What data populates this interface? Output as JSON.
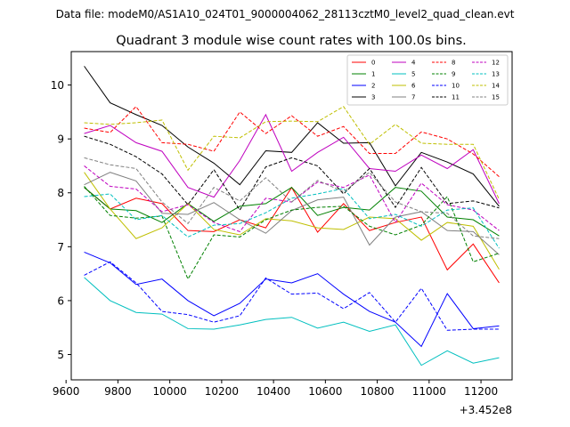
{
  "chart_data": {
    "type": "line",
    "suptitle": "Data file: modeM0/AS1A10_024T01_9000004062_28113cztM0_level2_quad_clean.evt",
    "title": "Quadrant 3 module wise count rates with 100.0s bins.",
    "xlabel": "",
    "ylabel": "",
    "x_offset_label": "+3.452e8",
    "xlim": [
      9620,
      11320
    ],
    "ylim": [
      4.53,
      10.62
    ],
    "x_ticks": [
      9600,
      9800,
      10000,
      10200,
      10400,
      10600,
      10800,
      11000,
      11200
    ],
    "x_tick_labels": [
      "9600",
      "9800",
      "10000",
      "10200",
      "10400",
      "10600",
      "10800",
      "11000",
      "11200"
    ],
    "y_ticks": [
      5,
      6,
      7,
      8,
      9,
      10
    ],
    "y_tick_labels": [
      "5",
      "6",
      "7",
      "8",
      "9",
      "10"
    ],
    "grid": false,
    "legend_position": "top-right",
    "x": [
      9670,
      9770,
      9870,
      9970,
      10070,
      10170,
      10270,
      10370,
      10470,
      10570,
      10670,
      10770,
      10870,
      10970,
      11070,
      11170,
      11270
    ],
    "series": [
      {
        "name": "0",
        "color": "#ff0000",
        "dash": false,
        "values": [
          8.1,
          7.7,
          7.9,
          7.8,
          7.3,
          7.28,
          7.5,
          7.35,
          8.1,
          7.27,
          7.8,
          7.3,
          7.45,
          7.55,
          6.57,
          7.05,
          6.33
        ]
      },
      {
        "name": "1",
        "color": "#008000",
        "dash": false,
        "values": [
          8.1,
          7.7,
          7.67,
          7.45,
          7.8,
          7.47,
          7.75,
          7.8,
          8.1,
          7.58,
          7.73,
          7.68,
          8.1,
          8.03,
          7.55,
          7.5,
          7.2
        ]
      },
      {
        "name": "2",
        "color": "#0000ff",
        "dash": false,
        "values": [
          6.9,
          6.7,
          6.3,
          6.4,
          6.0,
          5.72,
          5.95,
          6.4,
          6.33,
          6.5,
          6.12,
          5.8,
          5.6,
          5.15,
          6.13,
          5.48,
          5.53
        ]
      },
      {
        "name": "3",
        "color": "#000000",
        "dash": false,
        "values": [
          10.35,
          9.67,
          9.45,
          9.25,
          8.85,
          8.55,
          8.15,
          8.78,
          8.75,
          9.3,
          8.92,
          8.93,
          8.13,
          8.75,
          8.57,
          8.35,
          7.75
        ]
      },
      {
        "name": "4",
        "color": "#bf00bf",
        "dash": false,
        "values": [
          9.1,
          9.25,
          8.93,
          8.77,
          8.1,
          7.92,
          8.6,
          9.45,
          8.4,
          8.75,
          9.03,
          8.45,
          8.4,
          8.7,
          8.45,
          8.8,
          7.8
        ]
      },
      {
        "name": "5",
        "color": "#00bfbf",
        "dash": false,
        "values": [
          6.43,
          6.0,
          5.78,
          5.75,
          5.48,
          5.47,
          5.55,
          5.65,
          5.69,
          5.49,
          5.6,
          5.43,
          5.55,
          4.8,
          5.07,
          4.84,
          4.94
        ]
      },
      {
        "name": "6",
        "color": "#bfbf00",
        "dash": false,
        "values": [
          8.38,
          7.7,
          7.15,
          7.35,
          7.8,
          7.32,
          7.22,
          7.52,
          7.48,
          7.35,
          7.32,
          7.55,
          7.52,
          7.12,
          7.45,
          7.38,
          6.58
        ]
      },
      {
        "name": "7",
        "color": "#808080",
        "dash": false,
        "values": [
          8.15,
          8.38,
          8.22,
          7.62,
          7.6,
          7.82,
          7.5,
          7.25,
          7.67,
          7.87,
          7.92,
          7.03,
          7.55,
          7.65,
          7.3,
          7.28,
          6.85
        ]
      },
      {
        "name": "8",
        "color": "#ff0000",
        "dash": true,
        "values": [
          9.2,
          9.12,
          9.6,
          8.93,
          8.9,
          8.77,
          9.5,
          9.1,
          9.43,
          9.05,
          9.23,
          8.73,
          8.73,
          9.13,
          9.0,
          8.72,
          8.3
        ]
      },
      {
        "name": "9",
        "color": "#008000",
        "dash": true,
        "values": [
          8.12,
          7.58,
          7.53,
          7.57,
          6.4,
          7.22,
          7.18,
          7.5,
          7.68,
          7.73,
          7.75,
          7.38,
          7.22,
          7.4,
          7.93,
          6.72,
          6.88
        ]
      },
      {
        "name": "10",
        "color": "#0000ff",
        "dash": true,
        "values": [
          6.47,
          6.72,
          6.33,
          5.8,
          5.74,
          5.6,
          5.72,
          6.42,
          6.12,
          6.14,
          5.85,
          6.15,
          5.6,
          6.23,
          5.45,
          5.47,
          5.47
        ]
      },
      {
        "name": "11",
        "color": "#000000",
        "dash": true,
        "values": [
          9.05,
          8.9,
          8.67,
          8.35,
          7.78,
          8.43,
          7.68,
          8.48,
          8.65,
          8.5,
          7.98,
          8.45,
          7.73,
          8.47,
          7.8,
          7.85,
          7.72
        ]
      },
      {
        "name": "12",
        "color": "#bf00bf",
        "dash": true,
        "values": [
          8.5,
          8.12,
          8.07,
          7.65,
          7.78,
          7.45,
          7.28,
          7.9,
          7.83,
          8.2,
          8.1,
          8.33,
          7.45,
          8.18,
          7.78,
          7.68,
          7.3
        ]
      },
      {
        "name": "13",
        "color": "#00bfbf",
        "dash": true,
        "values": [
          7.93,
          7.98,
          7.5,
          7.58,
          7.18,
          7.4,
          7.43,
          7.63,
          7.9,
          7.98,
          8.08,
          7.52,
          7.6,
          7.38,
          7.68,
          7.72,
          6.97
        ]
      },
      {
        "name": "14",
        "color": "#bfbf00",
        "dash": true,
        "values": [
          9.3,
          9.27,
          9.3,
          9.35,
          8.42,
          9.05,
          9.02,
          9.32,
          9.33,
          9.32,
          9.6,
          8.9,
          9.27,
          8.92,
          8.9,
          8.9,
          7.88
        ]
      },
      {
        "name": "15",
        "color": "#808080",
        "dash": true,
        "values": [
          8.65,
          8.52,
          8.45,
          7.83,
          7.43,
          8.1,
          7.85,
          8.28,
          7.83,
          8.23,
          8.02,
          8.38,
          7.83,
          7.65,
          7.62,
          7.2,
          7.15
        ]
      }
    ]
  }
}
